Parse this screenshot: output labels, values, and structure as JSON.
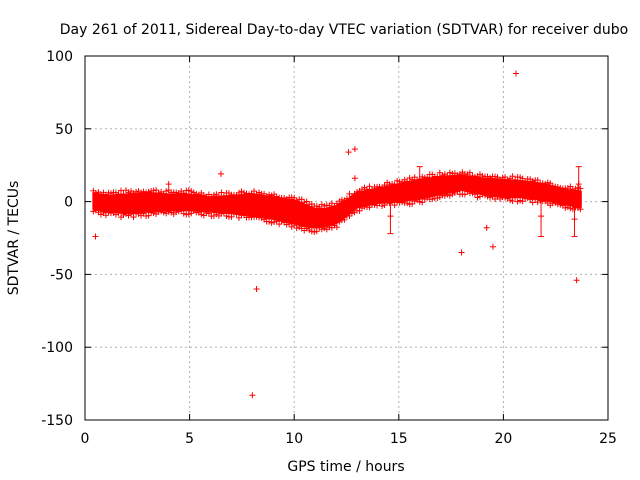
{
  "chart_data": {
    "type": "scatter",
    "title": "Day 261 of 2011, Sidereal Day-to-day VTEC variation (SDTVAR) for receiver dubo",
    "xlabel": "GPS time / hours",
    "ylabel": "SDTVAR / TECUs",
    "xlim": [
      0,
      25
    ],
    "ylim": [
      -150,
      100
    ],
    "xticks": [
      0,
      5,
      10,
      15,
      20,
      25
    ],
    "yticks": [
      -150,
      -100,
      -50,
      0,
      50,
      100
    ],
    "grid": true,
    "marker": "+",
    "color": "#ff0000",
    "band": {
      "description": "dense cloud of data points",
      "x": [
        0.4,
        1.0,
        2.0,
        3.0,
        4.0,
        5.0,
        6.0,
        7.0,
        8.0,
        9.0,
        10.0,
        10.5,
        11.0,
        11.5,
        12.0,
        12.5,
        13.0,
        14.0,
        15.0,
        16.0,
        17.0,
        18.0,
        19.0,
        20.0,
        21.0,
        22.0,
        23.0,
        23.7
      ],
      "lower": [
        -5,
        -7,
        -8,
        -7,
        -6,
        -6,
        -7,
        -8,
        -10,
        -12,
        -15,
        -17,
        -18,
        -17,
        -15,
        -10,
        -4,
        -1,
        0,
        2,
        5,
        8,
        5,
        3,
        3,
        1,
        -2,
        -4
      ],
      "upper": [
        6,
        4,
        5,
        6,
        5,
        5,
        3,
        4,
        5,
        3,
        1,
        -2,
        -5,
        -5,
        -3,
        1,
        6,
        9,
        12,
        15,
        17,
        18,
        16,
        15,
        14,
        12,
        8,
        7
      ]
    },
    "outliers": [
      {
        "x": 0.5,
        "y": -24
      },
      {
        "x": 4.0,
        "y": 12
      },
      {
        "x": 6.5,
        "y": 19
      },
      {
        "x": 8.0,
        "y": -133
      },
      {
        "x": 8.2,
        "y": -60
      },
      {
        "x": 12.6,
        "y": 34
      },
      {
        "x": 12.9,
        "y": 36
      },
      {
        "x": 12.9,
        "y": 16
      },
      {
        "x": 18.0,
        "y": -35
      },
      {
        "x": 19.2,
        "y": -18
      },
      {
        "x": 19.5,
        "y": -31
      },
      {
        "x": 20.6,
        "y": 88
      },
      {
        "x": 23.5,
        "y": -54
      }
    ],
    "error_bars": [
      {
        "x": 14.6,
        "y": -10,
        "low": -22,
        "high": 2
      },
      {
        "x": 16.0,
        "y": 14,
        "low": 0,
        "high": 24
      },
      {
        "x": 21.8,
        "y": -10,
        "low": -24,
        "high": 5
      },
      {
        "x": 23.4,
        "y": -12,
        "low": -24,
        "high": 2
      },
      {
        "x": 23.6,
        "y": 12,
        "low": 0,
        "high": 24
      }
    ]
  }
}
